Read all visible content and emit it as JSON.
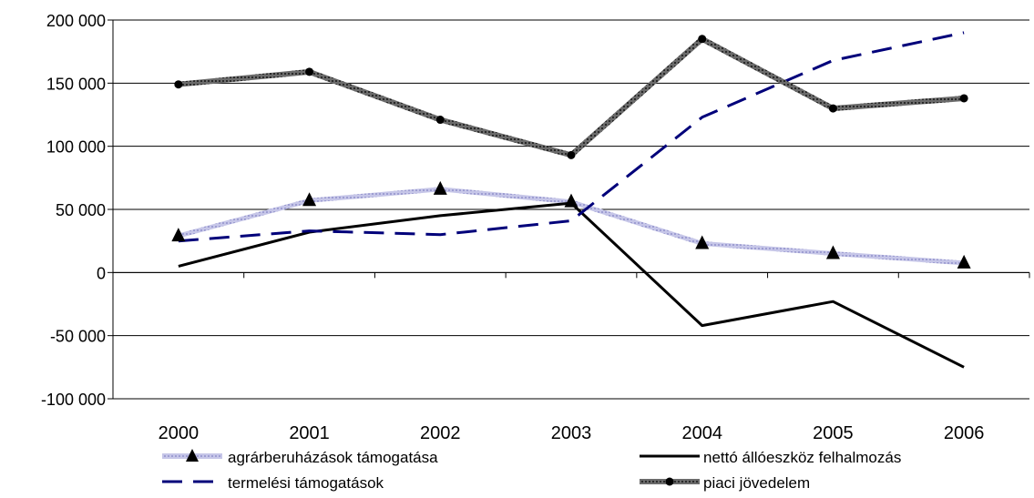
{
  "chart_data": {
    "type": "line",
    "title": "",
    "xlabel": "",
    "ylabel": "",
    "categories": [
      "2000",
      "2001",
      "2002",
      "2003",
      "2004",
      "2005",
      "2006"
    ],
    "ylim": [
      -100000,
      200000
    ],
    "yticks": [
      200000,
      150000,
      100000,
      50000,
      0,
      -50000,
      -100000
    ],
    "ytick_labels": [
      "200 000",
      "150 000",
      "100 000",
      "50 000",
      "0",
      "-50 000",
      "-100 000"
    ],
    "grid": "horizontal",
    "legend_position": "bottom",
    "series": [
      {
        "name": "agrárberuházások támogatása",
        "values": [
          29000,
          57000,
          66000,
          56000,
          23000,
          15000,
          7500
        ],
        "color": "#b3b3dd",
        "marker": "triangle",
        "marker_color": "#000000",
        "line_style": "dotted-thick"
      },
      {
        "name": "nettó állóeszköz felhalmozás",
        "values": [
          5000,
          32000,
          45000,
          55000,
          -42000,
          -23000,
          -75000
        ],
        "color": "#000000",
        "marker": "none",
        "line_style": "solid"
      },
      {
        "name": "termelési támogatások",
        "values": [
          25000,
          33000,
          30000,
          41000,
          123000,
          168000,
          190000
        ],
        "color": "#00007a",
        "marker": "none",
        "line_style": "dashed"
      },
      {
        "name": "piaci jövedelem",
        "values": [
          149000,
          159000,
          121000,
          93000,
          185000,
          130000,
          138000
        ],
        "color": "#5a5a5a",
        "marker": "circle",
        "marker_color": "#000000",
        "line_style": "dotted-thick"
      }
    ]
  },
  "legend": {
    "item1_label": "agrárberuházások támogatása",
    "item2_label": "nettó állóeszköz felhalmozás",
    "item3_label": "termelési támogatások",
    "item4_label": "piaci jövedelem"
  }
}
